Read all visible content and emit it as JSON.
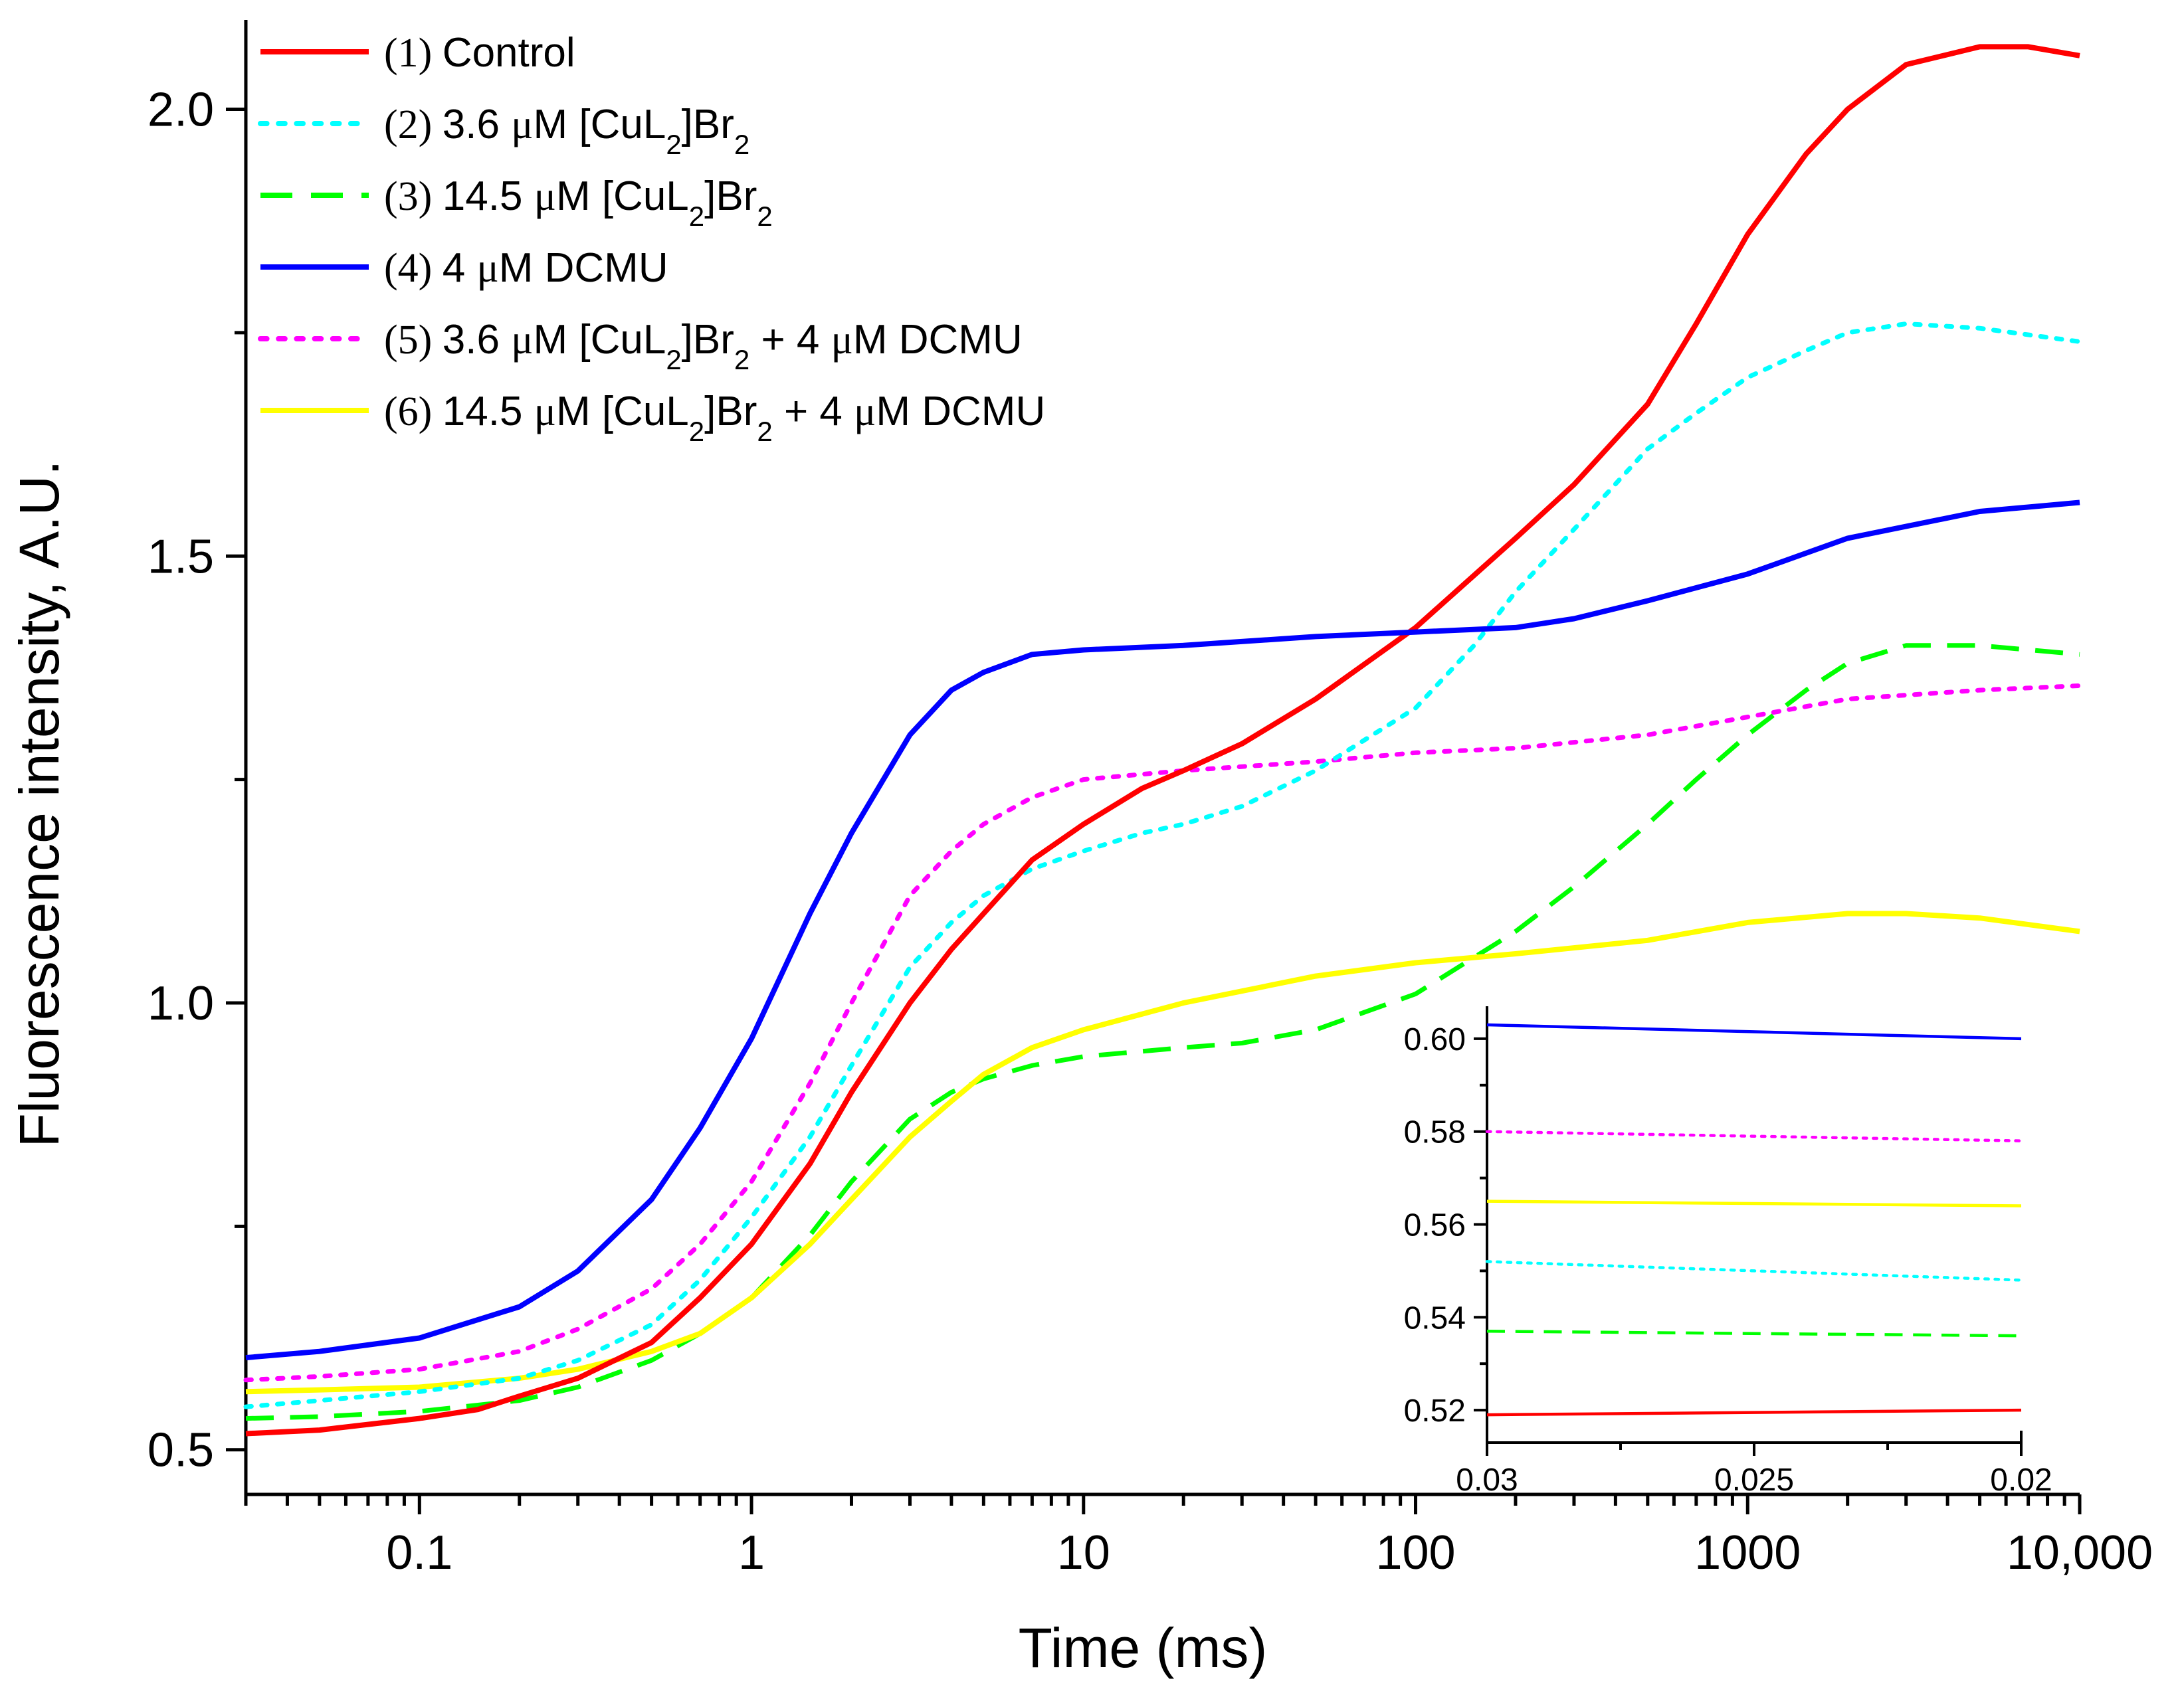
{
  "chart_data": [
    {
      "type": "line",
      "xscale": "log",
      "xlabel": "Time (ms)",
      "ylabel": "Fluorescence intensity, A.U.",
      "xlim": [
        0.03,
        10000
      ],
      "ylim": [
        0.45,
        2.1
      ],
      "xticks": [
        {
          "value": 0.1,
          "label": "0.1"
        },
        {
          "value": 1,
          "label": "1"
        },
        {
          "value": 10,
          "label": "10"
        },
        {
          "value": 100,
          "label": "100"
        },
        {
          "value": 1000,
          "label": "1000"
        },
        {
          "value": 10000,
          "label": "10,000"
        }
      ],
      "yticks": [
        {
          "value": 0.5,
          "label": "0.5"
        },
        {
          "value": 1.0,
          "label": "1.0"
        },
        {
          "value": 1.5,
          "label": "1.5"
        },
        {
          "value": 2.0,
          "label": "2.0"
        }
      ],
      "series": [
        {
          "name": "(1) Control",
          "num": "(1)",
          "label_parts": [
            {
              "t": "Control"
            }
          ],
          "color": "#ff0000",
          "dash": "solid",
          "points": [
            [
              0.03,
              0.518
            ],
            [
              0.05,
              0.522
            ],
            [
              0.1,
              0.535
            ],
            [
              0.15,
              0.545
            ],
            [
              0.2,
              0.56
            ],
            [
              0.3,
              0.58
            ],
            [
              0.5,
              0.62
            ],
            [
              0.7,
              0.67
            ],
            [
              1,
              0.73
            ],
            [
              1.5,
              0.82
            ],
            [
              2,
              0.9
            ],
            [
              3,
              1.0
            ],
            [
              4,
              1.06
            ],
            [
              5,
              1.1
            ],
            [
              7,
              1.16
            ],
            [
              10,
              1.2
            ],
            [
              15,
              1.24
            ],
            [
              20,
              1.26
            ],
            [
              30,
              1.29
            ],
            [
              50,
              1.34
            ],
            [
              100,
              1.42
            ],
            [
              200,
              1.52
            ],
            [
              300,
              1.58
            ],
            [
              500,
              1.67
            ],
            [
              700,
              1.76
            ],
            [
              1000,
              1.86
            ],
            [
              1500,
              1.95
            ],
            [
              2000,
              2.0
            ],
            [
              3000,
              2.05
            ],
            [
              5000,
              2.07
            ],
            [
              7000,
              2.07
            ],
            [
              10000,
              2.06
            ]
          ]
        },
        {
          "name": "(2) 3.6 μM [CuL2]Br2",
          "num": "(2)",
          "label_parts": [
            {
              "t": "3.6 "
            },
            {
              "t": "μ",
              "mu": true
            },
            {
              "t": "M [CuL"
            },
            {
              "t": "2",
              "sub": true
            },
            {
              "t": "]Br"
            },
            {
              "t": "2",
              "sub": true
            }
          ],
          "color": "#00ffff",
          "dash": "dot",
          "points": [
            [
              0.03,
              0.548
            ],
            [
              0.05,
              0.555
            ],
            [
              0.1,
              0.565
            ],
            [
              0.2,
              0.58
            ],
            [
              0.3,
              0.6
            ],
            [
              0.5,
              0.64
            ],
            [
              0.7,
              0.69
            ],
            [
              1,
              0.76
            ],
            [
              1.5,
              0.85
            ],
            [
              2,
              0.93
            ],
            [
              3,
              1.04
            ],
            [
              4,
              1.09
            ],
            [
              5,
              1.12
            ],
            [
              7,
              1.15
            ],
            [
              10,
              1.17
            ],
            [
              15,
              1.19
            ],
            [
              20,
              1.2
            ],
            [
              30,
              1.22
            ],
            [
              50,
              1.26
            ],
            [
              100,
              1.33
            ],
            [
              150,
              1.4
            ],
            [
              200,
              1.46
            ],
            [
              300,
              1.53
            ],
            [
              500,
              1.62
            ],
            [
              700,
              1.66
            ],
            [
              1000,
              1.7
            ],
            [
              1500,
              1.73
            ],
            [
              2000,
              1.75
            ],
            [
              3000,
              1.76
            ],
            [
              5000,
              1.755
            ],
            [
              10000,
              1.74
            ]
          ]
        },
        {
          "name": "(3) 14.5 μM [CuL2]Br2",
          "num": "(3)",
          "label_parts": [
            {
              "t": "14.5 "
            },
            {
              "t": "μ",
              "mu": true
            },
            {
              "t": "M [CuL"
            },
            {
              "t": "2",
              "sub": true
            },
            {
              "t": "]Br"
            },
            {
              "t": "2",
              "sub": true
            }
          ],
          "color": "#00ff00",
          "dash": "dash",
          "points": [
            [
              0.03,
              0.535
            ],
            [
              0.05,
              0.537
            ],
            [
              0.1,
              0.543
            ],
            [
              0.2,
              0.555
            ],
            [
              0.3,
              0.57
            ],
            [
              0.5,
              0.6
            ],
            [
              0.7,
              0.63
            ],
            [
              1,
              0.67
            ],
            [
              1.5,
              0.74
            ],
            [
              2,
              0.8
            ],
            [
              3,
              0.87
            ],
            [
              4,
              0.9
            ],
            [
              5,
              0.915
            ],
            [
              7,
              0.93
            ],
            [
              10,
              0.94
            ],
            [
              20,
              0.95
            ],
            [
              30,
              0.955
            ],
            [
              50,
              0.97
            ],
            [
              100,
              1.01
            ],
            [
              200,
              1.08
            ],
            [
              300,
              1.13
            ],
            [
              500,
              1.2
            ],
            [
              700,
              1.25
            ],
            [
              1000,
              1.3
            ],
            [
              1500,
              1.35
            ],
            [
              2000,
              1.38
            ],
            [
              3000,
              1.4
            ],
            [
              5000,
              1.4
            ],
            [
              10000,
              1.39
            ]
          ]
        },
        {
          "name": "(4) 4 μM DCMU",
          "num": "(4)",
          "label_parts": [
            {
              "t": "4 "
            },
            {
              "t": "μ",
              "mu": true
            },
            {
              "t": "M DCMU"
            }
          ],
          "color": "#0000ff",
          "dash": "solid",
          "points": [
            [
              0.03,
              0.603
            ],
            [
              0.05,
              0.61
            ],
            [
              0.1,
              0.625
            ],
            [
              0.2,
              0.66
            ],
            [
              0.3,
              0.7
            ],
            [
              0.5,
              0.78
            ],
            [
              0.7,
              0.86
            ],
            [
              1,
              0.96
            ],
            [
              1.5,
              1.1
            ],
            [
              2,
              1.19
            ],
            [
              3,
              1.3
            ],
            [
              4,
              1.35
            ],
            [
              5,
              1.37
            ],
            [
              7,
              1.39
            ],
            [
              10,
              1.395
            ],
            [
              20,
              1.4
            ],
            [
              50,
              1.41
            ],
            [
              100,
              1.415
            ],
            [
              200,
              1.42
            ],
            [
              300,
              1.43
            ],
            [
              500,
              1.45
            ],
            [
              1000,
              1.48
            ],
            [
              2000,
              1.52
            ],
            [
              5000,
              1.55
            ],
            [
              10000,
              1.56
            ]
          ]
        },
        {
          "name": "(5) 3.6 μM [CuL2]Br2 + 4 μM DCMU",
          "num": "(5)",
          "label_parts": [
            {
              "t": "3.6 "
            },
            {
              "t": "μ",
              "mu": true
            },
            {
              "t": "M [CuL"
            },
            {
              "t": "2",
              "sub": true
            },
            {
              "t": "]Br"
            },
            {
              "t": "2",
              "sub": true
            },
            {
              "t": " + 4 "
            },
            {
              "t": "μ",
              "mu": true
            },
            {
              "t": "M DCMU"
            }
          ],
          "color": "#ff00ff",
          "dash": "dot",
          "points": [
            [
              0.03,
              0.578
            ],
            [
              0.05,
              0.582
            ],
            [
              0.1,
              0.59
            ],
            [
              0.2,
              0.61
            ],
            [
              0.3,
              0.635
            ],
            [
              0.5,
              0.68
            ],
            [
              0.7,
              0.73
            ],
            [
              1,
              0.8
            ],
            [
              1.5,
              0.91
            ],
            [
              2,
              1.0
            ],
            [
              3,
              1.12
            ],
            [
              4,
              1.17
            ],
            [
              5,
              1.2
            ],
            [
              7,
              1.23
            ],
            [
              10,
              1.25
            ],
            [
              20,
              1.26
            ],
            [
              50,
              1.27
            ],
            [
              100,
              1.28
            ],
            [
              200,
              1.285
            ],
            [
              500,
              1.3
            ],
            [
              1000,
              1.32
            ],
            [
              2000,
              1.34
            ],
            [
              5000,
              1.35
            ],
            [
              10000,
              1.355
            ]
          ]
        },
        {
          "name": "(6) 14.5 μM [CuL2]Br2 + 4 μM DCMU",
          "num": "(6)",
          "label_parts": [
            {
              "t": "14.5 "
            },
            {
              "t": "μ",
              "mu": true
            },
            {
              "t": "M [CuL"
            },
            {
              "t": "2",
              "sub": true
            },
            {
              "t": "]Br"
            },
            {
              "t": "2",
              "sub": true
            },
            {
              "t": " + 4 "
            },
            {
              "t": "μ",
              "mu": true
            },
            {
              "t": "M DCMU"
            }
          ],
          "color": "#ffff00",
          "dash": "solid",
          "points": [
            [
              0.03,
              0.565
            ],
            [
              0.05,
              0.567
            ],
            [
              0.1,
              0.57
            ],
            [
              0.2,
              0.58
            ],
            [
              0.3,
              0.59
            ],
            [
              0.5,
              0.61
            ],
            [
              0.7,
              0.63
            ],
            [
              1,
              0.67
            ],
            [
              1.5,
              0.73
            ],
            [
              2,
              0.78
            ],
            [
              3,
              0.85
            ],
            [
              4,
              0.89
            ],
            [
              5,
              0.92
            ],
            [
              7,
              0.95
            ],
            [
              10,
              0.97
            ],
            [
              20,
              1.0
            ],
            [
              50,
              1.03
            ],
            [
              100,
              1.045
            ],
            [
              200,
              1.055
            ],
            [
              500,
              1.07
            ],
            [
              1000,
              1.09
            ],
            [
              2000,
              1.1
            ],
            [
              3000,
              1.1
            ],
            [
              5000,
              1.095
            ],
            [
              10000,
              1.08
            ]
          ]
        }
      ]
    },
    {
      "type": "line",
      "title": "inset",
      "xlim": [
        0.03,
        0.02
      ],
      "ylim": [
        0.513,
        0.607
      ],
      "xticks": [
        {
          "value": 0.03,
          "label": "0.03"
        },
        {
          "value": 0.025,
          "label": "0.025"
        },
        {
          "value": 0.02,
          "label": "0.02"
        }
      ],
      "yticks": [
        {
          "value": 0.52,
          "label": "0.52"
        },
        {
          "value": 0.54,
          "label": "0.54"
        },
        {
          "value": 0.56,
          "label": "0.56"
        },
        {
          "value": 0.58,
          "label": "0.58"
        },
        {
          "value": 0.6,
          "label": "0.60"
        }
      ],
      "series": [
        {
          "name": "(4) 4 μM DCMU",
          "color": "#0000ff",
          "dash": "solid",
          "points": [
            [
              0.03,
              0.603
            ],
            [
              0.02,
              0.6
            ]
          ]
        },
        {
          "name": "(5) 3.6 μM [CuL2]Br2 + 4 μM DCMU",
          "color": "#ff00ff",
          "dash": "dot",
          "points": [
            [
              0.03,
              0.58
            ],
            [
              0.02,
              0.578
            ]
          ]
        },
        {
          "name": "(6) 14.5 μM [CuL2]Br2 + 4 μM DCMU",
          "color": "#ffff00",
          "dash": "solid",
          "points": [
            [
              0.03,
              0.565
            ],
            [
              0.02,
              0.564
            ]
          ]
        },
        {
          "name": "(2) 3.6 μM [CuL2]Br2",
          "color": "#00ffff",
          "dash": "dot",
          "points": [
            [
              0.03,
              0.552
            ],
            [
              0.02,
              0.548
            ]
          ]
        },
        {
          "name": "(3) 14.5 μM [CuL2]Br2",
          "color": "#00ff00",
          "dash": "dash",
          "points": [
            [
              0.03,
              0.537
            ],
            [
              0.02,
              0.536
            ]
          ]
        },
        {
          "name": "(1) Control",
          "color": "#ff0000",
          "dash": "solid",
          "points": [
            [
              0.03,
              0.519
            ],
            [
              0.02,
              0.52
            ]
          ]
        }
      ]
    }
  ]
}
